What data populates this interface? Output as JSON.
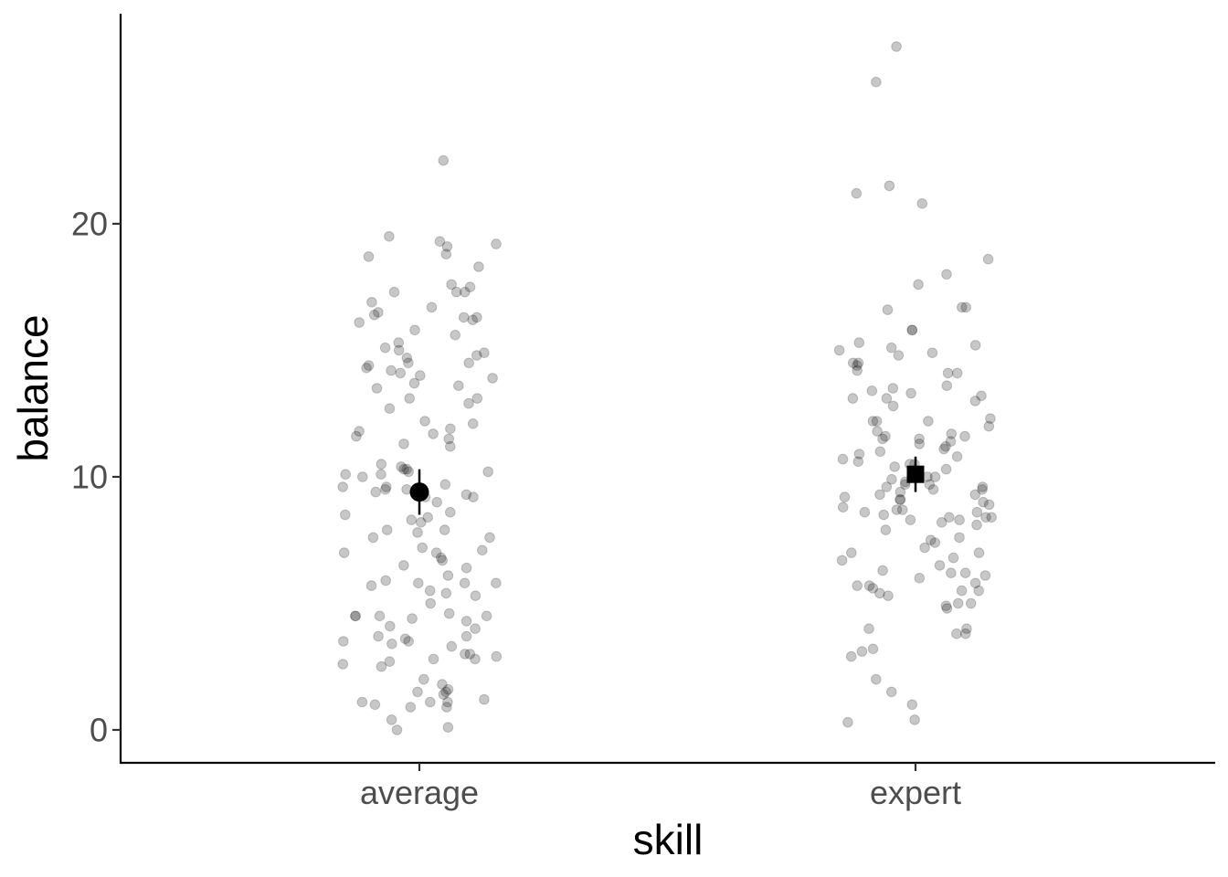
{
  "chart_data": {
    "type": "scatter",
    "xlabel": "skill",
    "ylabel": "balance",
    "categories": [
      "average",
      "expert"
    ],
    "ylim": [
      -1.3,
      28.3
    ],
    "yticks": [
      0,
      10,
      20
    ],
    "grid": false,
    "legend": "none",
    "point_color": "#000000",
    "point_opacity": 0.22,
    "jitter_width": 0.4,
    "series": [
      {
        "category": "average",
        "mean": 9.4,
        "ci": [
          8.5,
          10.3
        ],
        "marker": "circle",
        "values": [
          22.5,
          19.5,
          19.3,
          19.2,
          19.1,
          18.8,
          18.7,
          18.3,
          17.6,
          17.5,
          17.3,
          17.3,
          17.3,
          16.9,
          16.7,
          16.5,
          16.4,
          16.3,
          16.3,
          16.2,
          16.1,
          15.8,
          15.6,
          15.3,
          15.1,
          15.0,
          14.9,
          14.8,
          14.7,
          14.5,
          14.5,
          14.4,
          14.3,
          14.2,
          14.1,
          14.0,
          13.9,
          13.7,
          13.6,
          13.5,
          13.1,
          13.1,
          12.9,
          12.7,
          12.2,
          12.1,
          11.9,
          11.8,
          11.7,
          11.6,
          11.5,
          11.3,
          11.2,
          10.5,
          10.4,
          10.3,
          10.3,
          10.2,
          10.2,
          10.1,
          10.1,
          10.0,
          9.7,
          9.6,
          9.6,
          9.5,
          9.5,
          9.4,
          9.3,
          9.3,
          9.2,
          9.2,
          9.0,
          8.6,
          8.5,
          8.4,
          8.3,
          8.2,
          7.9,
          7.9,
          7.8,
          7.6,
          7.6,
          7.2,
          7.1,
          7.0,
          7.0,
          6.8,
          6.7,
          6.5,
          6.4,
          6.1,
          5.9,
          5.8,
          5.8,
          5.8,
          5.7,
          5.5,
          5.4,
          5.3,
          5.0,
          4.6,
          4.5,
          4.5,
          4.5,
          4.5,
          4.4,
          4.3,
          4.1,
          4.0,
          3.7,
          3.7,
          3.6,
          3.5,
          3.5,
          3.4,
          3.3,
          3.0,
          3.0,
          2.9,
          2.8,
          2.8,
          2.7,
          2.6,
          2.5,
          2.0,
          1.8,
          1.6,
          1.5,
          1.5,
          1.4,
          1.2,
          1.1,
          1.1,
          1.1,
          1.0,
          0.9,
          0.9,
          0.4,
          0.1,
          0.0
        ]
      },
      {
        "category": "expert",
        "mean": 10.1,
        "ci": [
          9.4,
          10.8
        ],
        "marker": "square",
        "values": [
          27.0,
          25.6,
          21.5,
          21.2,
          20.8,
          18.6,
          18.0,
          17.6,
          16.7,
          16.7,
          16.6,
          15.8,
          15.8,
          15.3,
          15.2,
          15.1,
          15.0,
          14.9,
          14.8,
          14.5,
          14.5,
          14.4,
          14.2,
          14.1,
          14.1,
          13.6,
          13.5,
          13.4,
          13.3,
          13.2,
          13.1,
          13.1,
          13.0,
          12.8,
          12.3,
          12.2,
          12.2,
          12.2,
          12.0,
          11.8,
          11.7,
          11.6,
          11.6,
          11.5,
          11.5,
          11.4,
          11.3,
          11.2,
          11.1,
          11.0,
          10.9,
          10.8,
          10.7,
          10.6,
          10.5,
          10.5,
          10.4,
          10.3,
          10.0,
          10.0,
          9.9,
          9.8,
          9.7,
          9.7,
          9.6,
          9.6,
          9.5,
          9.5,
          9.4,
          9.3,
          9.3,
          9.2,
          9.1,
          9.1,
          9.0,
          8.9,
          8.8,
          8.7,
          8.7,
          8.6,
          8.6,
          8.5,
          8.4,
          8.4,
          8.4,
          8.3,
          8.3,
          8.2,
          8.1,
          7.9,
          7.6,
          7.5,
          7.4,
          7.2,
          7.0,
          7.0,
          6.8,
          6.7,
          6.5,
          6.3,
          6.2,
          6.2,
          6.1,
          6.0,
          5.8,
          5.7,
          5.7,
          5.6,
          5.5,
          5.5,
          5.4,
          5.3,
          5.0,
          5.0,
          4.9,
          4.8,
          4.0,
          4.0,
          3.8,
          3.8,
          3.2,
          3.1,
          2.9,
          2.0,
          1.5,
          1.0,
          0.4,
          0.3
        ]
      }
    ]
  }
}
